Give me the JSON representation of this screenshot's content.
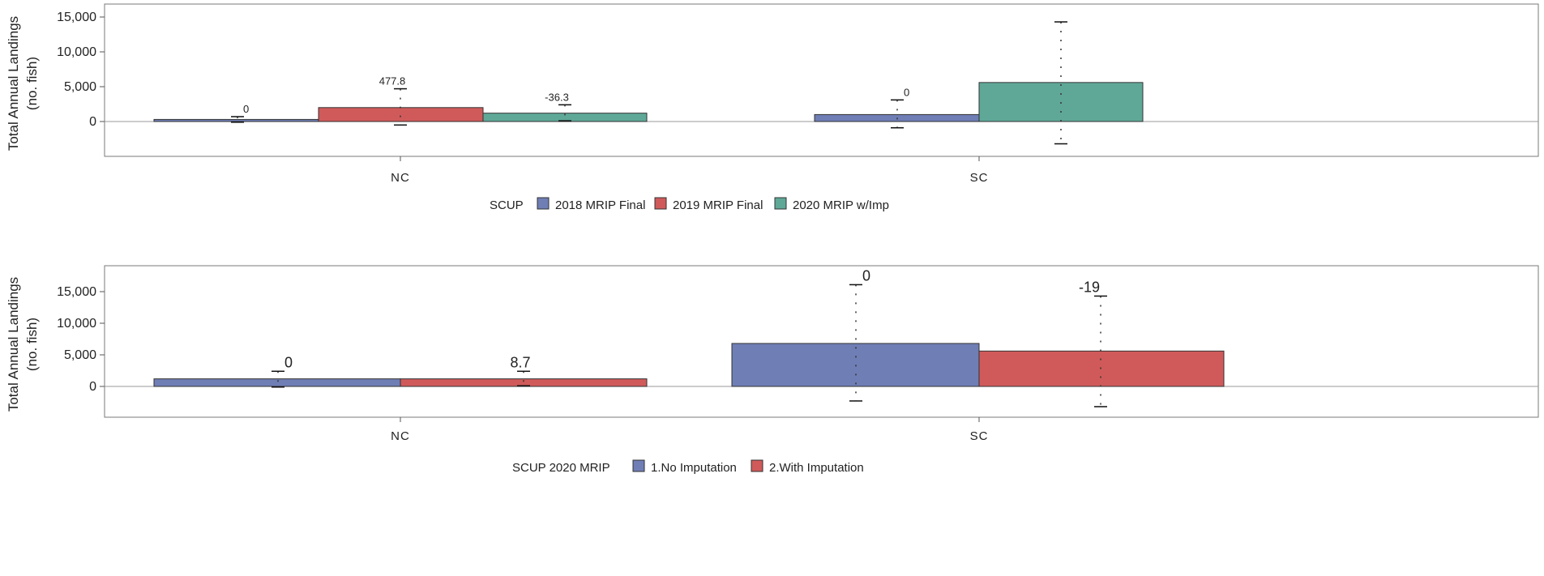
{
  "chart_data": [
    {
      "type": "bar",
      "categories": [
        "NC",
        "SC"
      ],
      "ylabel_line1": "Total Annual Landings",
      "ylabel_line2": "(no. fish)",
      "ylim": [
        -4500,
        15500
      ],
      "yticks": [
        0,
        5000,
        10000,
        15000
      ],
      "ytick_labels": [
        "0",
        "5,000",
        "10,000",
        "15,000"
      ],
      "legend_title": "SCUP",
      "legend_position": "bottom-center",
      "series": [
        {
          "name": "2018 MRIP Final",
          "color": "#6f7eb5",
          "values": [
            300,
            1000
          ],
          "err_low": [
            -100,
            -900
          ],
          "err_high": [
            700,
            3100
          ],
          "labels": [
            "0",
            "0"
          ]
        },
        {
          "name": "2019 MRIP Final",
          "color": "#d05a5a",
          "values": [
            2000,
            null
          ],
          "err_low": [
            -500,
            null
          ],
          "err_high": [
            4700,
            null
          ],
          "labels": [
            "477.8",
            ""
          ]
        },
        {
          "name": "2020 MRIP w/Imp",
          "color": "#5fa898",
          "values": [
            1200,
            5600
          ],
          "err_low": [
            100,
            -3200
          ],
          "err_high": [
            2400,
            14300
          ],
          "labels": [
            "-36.3",
            ""
          ]
        }
      ]
    },
    {
      "type": "bar",
      "categories": [
        "NC",
        "SC"
      ],
      "ylabel_line1": "Total Annual Landings",
      "ylabel_line2": "(no. fish)",
      "ylim": [
        -4500,
        19500
      ],
      "yticks": [
        0,
        5000,
        10000,
        15000
      ],
      "ytick_labels": [
        "0",
        "5,000",
        "10,000",
        "15,000"
      ],
      "legend_title": "SCUP 2020 MRIP",
      "legend_position": "bottom-center",
      "series": [
        {
          "name": "1.No Imputation",
          "color": "#6f7eb5",
          "values": [
            1200,
            6800
          ],
          "err_low": [
            -100,
            -2300
          ],
          "err_high": [
            2400,
            16100
          ],
          "labels": [
            "0",
            "0"
          ]
        },
        {
          "name": "2.With Imputation",
          "color": "#d05a5a",
          "values": [
            1200,
            5600
          ],
          "err_low": [
            100,
            -3200
          ],
          "err_high": [
            2400,
            14300
          ],
          "labels": [
            "8.7",
            "-19"
          ]
        }
      ]
    }
  ]
}
